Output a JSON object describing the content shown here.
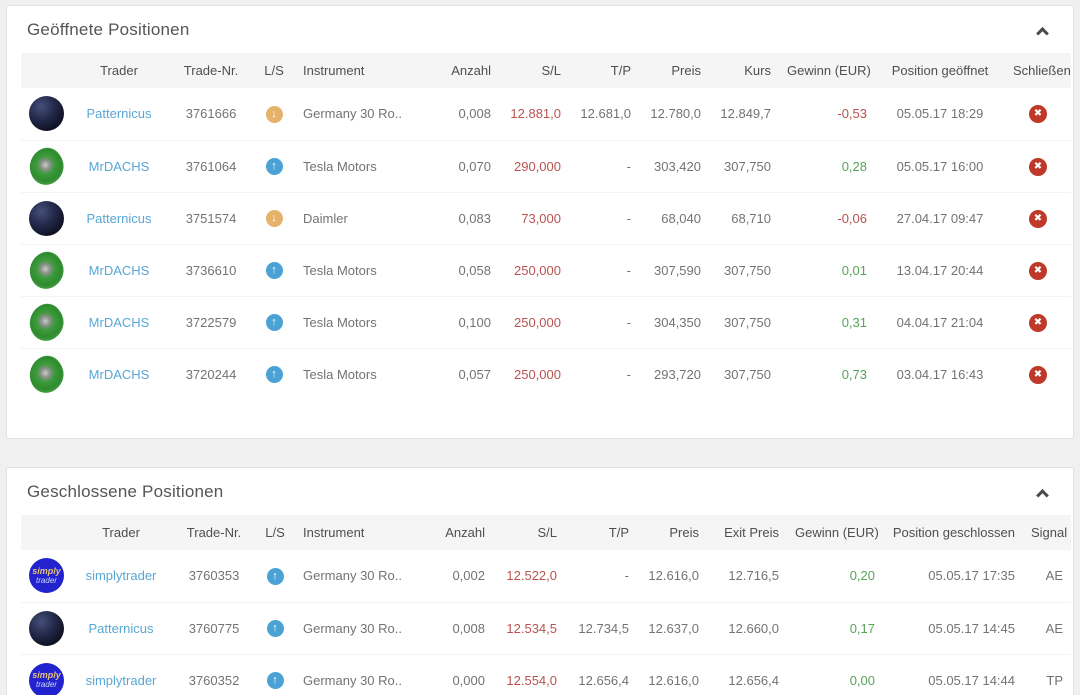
{
  "colors": {
    "link_blue": "#58a7d4",
    "loss_red": "#b9534f",
    "gain_green": "#56a456",
    "long_blue": "#4ba3d5",
    "short_orange": "#e5b269",
    "close_red": "#bf392b",
    "header_bg": "#f5f5f5"
  },
  "icons": {
    "ls_long": "↑",
    "ls_short": "↓",
    "close": "✖",
    "collapse": "chevron-up"
  },
  "avatar_labels": {
    "simplytrader_line1": "simply",
    "simplytrader_line2": "trader"
  },
  "open_positions": {
    "title": "Geöffnete Positionen",
    "columns": [
      "",
      "Trader",
      "Trade-Nr.",
      "L/S",
      "Instrument",
      "Anzahl",
      "S/L",
      "T/P",
      "Preis",
      "Kurs",
      "Gewinn (EUR)",
      "Position geöffnet",
      "Schließen"
    ],
    "rows": [
      {
        "avatar": "patternicus",
        "trader": "Patternicus",
        "trade_nr": "3761666",
        "ls": "short",
        "instrument": "Germany 30 Ro..",
        "anzahl": "0,008",
        "sl": "12.881,0",
        "tp": "12.681,0",
        "preis": "12.780,0",
        "kurs": "12.849,7",
        "gewinn": "-0,53",
        "opened": "05.05.17 18:29"
      },
      {
        "avatar": "mrdachs",
        "trader": "MrDACHS",
        "trade_nr": "3761064",
        "ls": "long",
        "instrument": "Tesla Motors",
        "anzahl": "0,070",
        "sl": "290,000",
        "tp": "-",
        "preis": "303,420",
        "kurs": "307,750",
        "gewinn": "0,28",
        "opened": "05.05.17 16:00"
      },
      {
        "avatar": "patternicus",
        "trader": "Patternicus",
        "trade_nr": "3751574",
        "ls": "short",
        "instrument": "Daimler",
        "anzahl": "0,083",
        "sl": "73,000",
        "tp": "-",
        "preis": "68,040",
        "kurs": "68,710",
        "gewinn": "-0,06",
        "opened": "27.04.17 09:47"
      },
      {
        "avatar": "mrdachs",
        "trader": "MrDACHS",
        "trade_nr": "3736610",
        "ls": "long",
        "instrument": "Tesla Motors",
        "anzahl": "0,058",
        "sl": "250,000",
        "tp": "-",
        "preis": "307,590",
        "kurs": "307,750",
        "gewinn": "0,01",
        "opened": "13.04.17 20:44"
      },
      {
        "avatar": "mrdachs",
        "trader": "MrDACHS",
        "trade_nr": "3722579",
        "ls": "long",
        "instrument": "Tesla Motors",
        "anzahl": "0,100",
        "sl": "250,000",
        "tp": "-",
        "preis": "304,350",
        "kurs": "307,750",
        "gewinn": "0,31",
        "opened": "04.04.17 21:04"
      },
      {
        "avatar": "mrdachs",
        "trader": "MrDACHS",
        "trade_nr": "3720244",
        "ls": "long",
        "instrument": "Tesla Motors",
        "anzahl": "0,057",
        "sl": "250,000",
        "tp": "-",
        "preis": "293,720",
        "kurs": "307,750",
        "gewinn": "0,73",
        "opened": "03.04.17 16:43"
      }
    ]
  },
  "closed_positions": {
    "title": "Geschlossene Positionen",
    "columns": [
      "",
      "Trader",
      "Trade-Nr.",
      "L/S",
      "Instrument",
      "Anzahl",
      "S/L",
      "T/P",
      "Preis",
      "Exit Preis",
      "Gewinn (EUR)",
      "Position geschlossen",
      "Signal"
    ],
    "rows": [
      {
        "avatar": "simplytrader",
        "trader": "simplytrader",
        "trade_nr": "3760353",
        "ls": "long",
        "instrument": "Germany 30 Ro..",
        "anzahl": "0,002",
        "sl": "12.522,0",
        "tp": "-",
        "preis": "12.616,0",
        "exit_preis": "12.716,5",
        "gewinn": "0,20",
        "closed": "05.05.17 17:35",
        "signal": "AE"
      },
      {
        "avatar": "patternicus",
        "trader": "Patternicus",
        "trade_nr": "3760775",
        "ls": "long",
        "instrument": "Germany 30 Ro..",
        "anzahl": "0,008",
        "sl": "12.534,5",
        "tp": "12.734,5",
        "preis": "12.637,0",
        "exit_preis": "12.660,0",
        "gewinn": "0,17",
        "closed": "05.05.17 14:45",
        "signal": "AE"
      },
      {
        "avatar": "simplytrader",
        "trader": "simplytrader",
        "trade_nr": "3760352",
        "ls": "long",
        "instrument": "Germany 30 Ro..",
        "anzahl": "0,000",
        "sl": "12.554,0",
        "tp": "12.656,4",
        "preis": "12.616,0",
        "exit_preis": "12.656,4",
        "gewinn": "0,00",
        "closed": "05.05.17 14:44",
        "signal": "TP"
      }
    ]
  }
}
